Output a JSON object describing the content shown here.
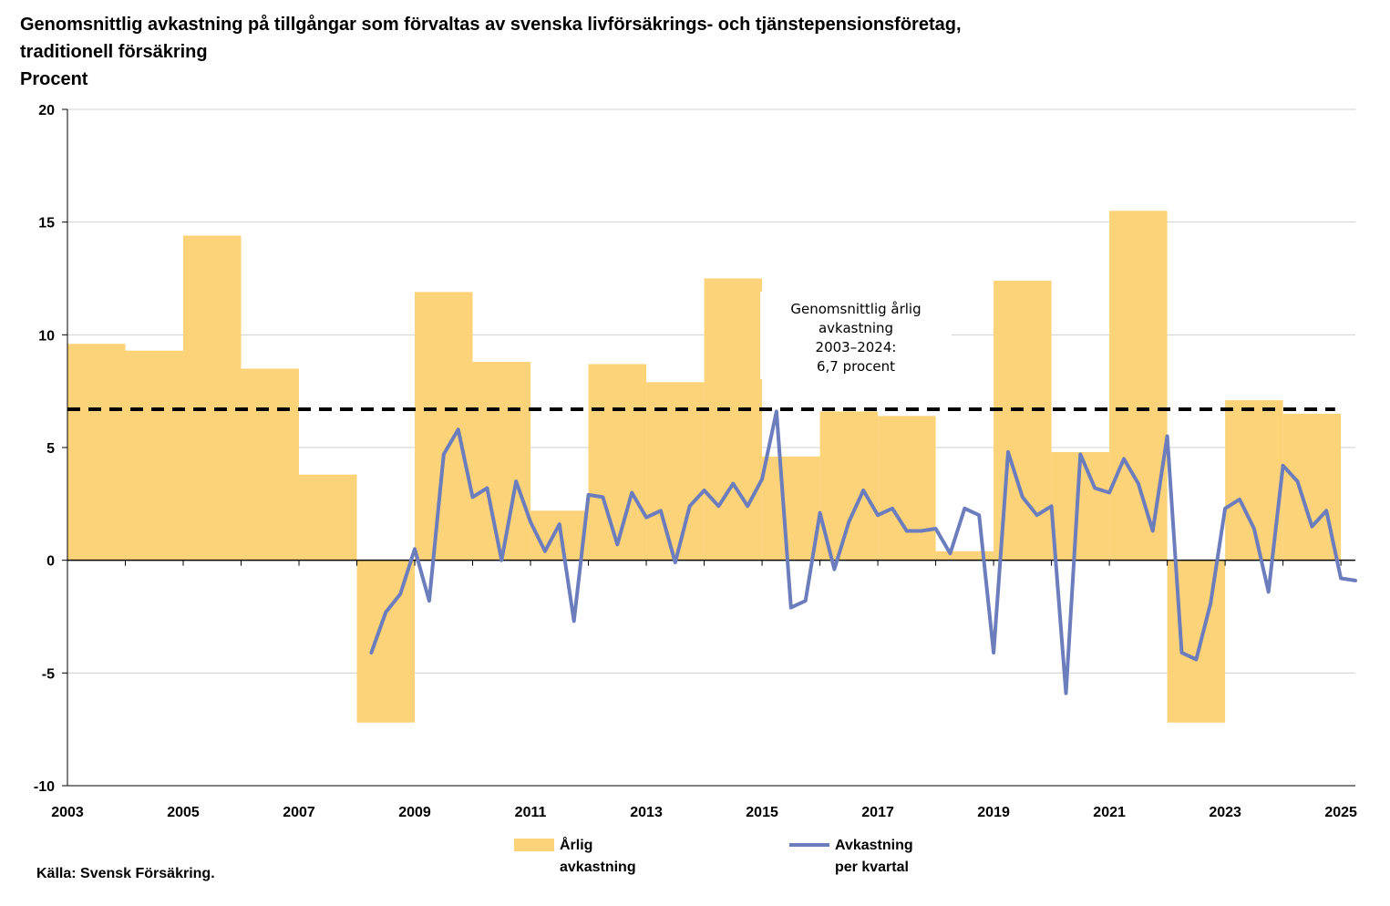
{
  "title_lines": [
    "Genomsnittlig avkastning på tillgångar som förvaltas av svenska livförsäkrings- och tjänstepensionsföretag,",
    "traditionell försäkring",
    "Procent"
  ],
  "source": "Källa: Svensk Försäkring.",
  "chart_data": {
    "type": "bar+line",
    "ylim": [
      -10,
      20
    ],
    "y_ticks": [
      "20",
      "15",
      "10",
      "5",
      "0",
      "-5",
      "-10"
    ],
    "y_tick_values": [
      20,
      15,
      10,
      5,
      0,
      -5,
      -10
    ],
    "x_ticks": [
      "2003",
      "2005",
      "2007",
      "2009",
      "2011",
      "2013",
      "2015",
      "2017",
      "2019",
      "2021",
      "2023",
      "2025"
    ],
    "x_tick_values": [
      2003,
      2005,
      2007,
      2009,
      2011,
      2013,
      2015,
      2017,
      2019,
      2021,
      2023,
      2025
    ],
    "xlim": [
      2003,
      2025.25
    ],
    "grid": true,
    "annual": {
      "label": "Årlig avkastning",
      "color": "#FDD37A",
      "years": [
        2003,
        2004,
        2005,
        2006,
        2007,
        2008,
        2009,
        2010,
        2011,
        2012,
        2013,
        2014,
        2015,
        2016,
        2017,
        2018,
        2019,
        2020,
        2021,
        2022,
        2023,
        2024
      ],
      "values": [
        9.6,
        9.3,
        14.4,
        8.5,
        3.8,
        -7.2,
        11.9,
        8.8,
        2.2,
        8.7,
        7.9,
        12.5,
        4.6,
        6.6,
        6.4,
        0.4,
        12.4,
        4.8,
        15.5,
        -7.2,
        7.1,
        6.5
      ]
    },
    "quarterly": {
      "label": "Avkastning per kvartal",
      "color": "#6C7DBD",
      "x": [
        2008.25,
        2008.5,
        2008.75,
        2009.0,
        2009.25,
        2009.5,
        2009.75,
        2010.0,
        2010.25,
        2010.5,
        2010.75,
        2011.0,
        2011.25,
        2011.5,
        2011.75,
        2012.0,
        2012.25,
        2012.5,
        2012.75,
        2013.0,
        2013.25,
        2013.5,
        2013.75,
        2014.0,
        2014.25,
        2014.5,
        2014.75,
        2015.0,
        2015.25,
        2015.5,
        2015.75,
        2016.0,
        2016.25,
        2016.5,
        2016.75,
        2017.0,
        2017.25,
        2017.5,
        2017.75,
        2018.0,
        2018.25,
        2018.5,
        2018.75,
        2019.0,
        2019.25,
        2019.5,
        2019.75,
        2020.0,
        2020.25,
        2020.5,
        2020.75,
        2021.0,
        2021.25,
        2021.5,
        2021.75,
        2022.0,
        2022.25,
        2022.5,
        2022.75,
        2023.0,
        2023.25,
        2023.5,
        2023.75,
        2024.0,
        2024.25,
        2024.5,
        2024.75,
        2025.0,
        2025.25
      ],
      "values": [
        -4.1,
        -2.3,
        -1.5,
        0.5,
        -1.8,
        4.7,
        5.8,
        2.8,
        3.2,
        0.0,
        3.5,
        1.7,
        0.4,
        1.6,
        -2.7,
        2.9,
        2.8,
        0.7,
        3.0,
        1.9,
        2.2,
        -0.1,
        2.4,
        3.1,
        2.4,
        3.4,
        2.4,
        3.6,
        6.6,
        -2.1,
        -1.8,
        2.1,
        -0.4,
        1.7,
        3.1,
        2.0,
        2.3,
        1.3,
        1.3,
        1.4,
        0.3,
        2.3,
        2.0,
        -4.1,
        4.8,
        2.8,
        2.0,
        2.4,
        -5.9,
        4.7,
        3.2,
        3.0,
        4.5,
        3.4,
        1.3,
        5.5,
        -4.1,
        -4.4,
        -1.9,
        2.3,
        2.7,
        1.4,
        -1.4,
        4.2,
        3.5,
        1.5,
        2.2,
        -0.8,
        -0.9
      ]
    },
    "average": {
      "value": 6.7,
      "annotation_lines": [
        "Genomsnittlig årlig",
        "avkastning",
        "2003–2024:",
        "6,7 procent"
      ]
    },
    "legend": [
      {
        "lines": [
          "Årlig",
          "avkastning"
        ],
        "kind": "bar"
      },
      {
        "lines": [
          "Avkastning",
          "per kvartal"
        ],
        "kind": "line"
      }
    ],
    "legend_position": "bottom"
  }
}
